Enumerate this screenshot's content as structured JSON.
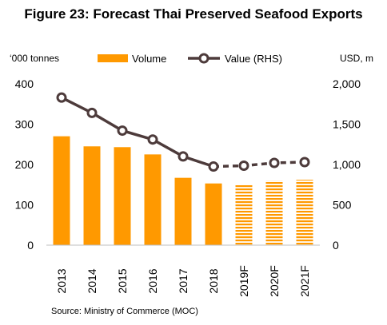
{
  "figure": {
    "title": "Figure 23: Forecast Thai Preserved Seafood Exports",
    "source": "Source: Ministry of Commerce (MOC)"
  },
  "chart_data": {
    "type": "bar+line",
    "categories": [
      "2013",
      "2014",
      "2015",
      "2016",
      "2017",
      "2018",
      "2019F",
      "2020F",
      "2021F"
    ],
    "forecast_start_index": 6,
    "series": [
      {
        "name": "Volume",
        "type": "bar",
        "axis": "left",
        "color": "#FF9900",
        "values": [
          270,
          245,
          243,
          225,
          167,
          153,
          150,
          160,
          162
        ]
      },
      {
        "name": "Value (RHS)",
        "type": "line",
        "axis": "right",
        "color": "#4D3B3B",
        "values": [
          1830,
          1640,
          1420,
          1310,
          1100,
          975,
          985,
          1020,
          1030
        ]
      }
    ],
    "left_axis": {
      "unit_label": "‘000 tonnes",
      "min": 0,
      "max": 400,
      "ticks": [
        0,
        100,
        200,
        300,
        400
      ]
    },
    "right_axis": {
      "unit_label": "USD, m",
      "min": 0,
      "max": 2000,
      "ticks": [
        "0",
        "500",
        "1,000",
        "1,500",
        "2,000"
      ]
    },
    "legend": {
      "position": "top",
      "items": [
        "Volume",
        "Value (RHS)"
      ]
    },
    "grid": false,
    "x_labels_rotated": true
  }
}
